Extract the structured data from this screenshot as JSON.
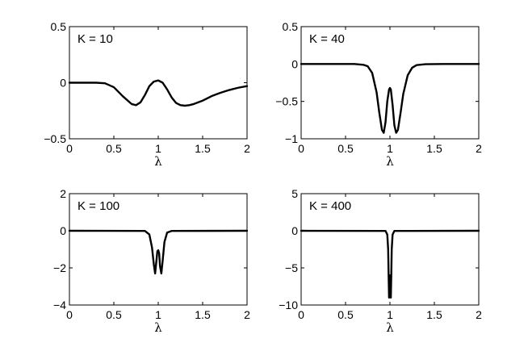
{
  "chart_data": [
    {
      "type": "line",
      "annotation": "K = 10",
      "xlabel": "λ",
      "xlim": [
        0,
        2
      ],
      "ylim": [
        -0.5,
        0.5
      ],
      "x_ticks": [
        0,
        0.5,
        1,
        1.5,
        2
      ],
      "x_tick_labels": [
        "0",
        "0.5",
        "1",
        "1.5",
        "2"
      ],
      "y_ticks": [
        -0.5,
        0,
        0.5
      ],
      "y_tick_labels": [
        "−0.5",
        "0",
        "0.5"
      ],
      "grid": false,
      "series": [
        {
          "x": [
            0,
            0.3,
            0.4,
            0.5,
            0.6,
            0.7,
            0.75,
            0.8,
            0.85,
            0.9,
            0.95,
            1.0,
            1.05,
            1.1,
            1.15,
            1.2,
            1.25,
            1.3,
            1.35,
            1.4,
            1.5,
            1.6,
            1.7,
            1.8,
            1.9,
            2.0
          ],
          "y": [
            0,
            0,
            -0.005,
            -0.04,
            -0.12,
            -0.19,
            -0.2,
            -0.175,
            -0.11,
            -0.03,
            0.01,
            0.02,
            0.0,
            -0.06,
            -0.13,
            -0.18,
            -0.2,
            -0.205,
            -0.2,
            -0.19,
            -0.16,
            -0.12,
            -0.09,
            -0.065,
            -0.045,
            -0.03
          ]
        }
      ]
    },
    {
      "type": "line",
      "annotation": "K = 40",
      "xlabel": "λ",
      "xlim": [
        0,
        2
      ],
      "ylim": [
        -1,
        0.5
      ],
      "x_ticks": [
        0,
        0.5,
        1,
        1.5,
        2
      ],
      "x_tick_labels": [
        "0",
        "0.5",
        "1",
        "1.5",
        "2"
      ],
      "y_ticks": [
        -1,
        -0.5,
        0,
        0.5
      ],
      "y_tick_labels": [
        "−1",
        "−0.5",
        "0",
        "0.5"
      ],
      "grid": false,
      "series": [
        {
          "x": [
            0,
            0.6,
            0.7,
            0.75,
            0.8,
            0.85,
            0.88,
            0.91,
            0.93,
            0.95,
            0.97,
            0.99,
            1.0,
            1.01,
            1.03,
            1.05,
            1.07,
            1.09,
            1.12,
            1.15,
            1.2,
            1.25,
            1.3,
            1.4,
            1.6,
            2.0
          ],
          "y": [
            0,
            0,
            -0.01,
            -0.03,
            -0.12,
            -0.38,
            -0.65,
            -0.88,
            -0.92,
            -0.78,
            -0.5,
            -0.34,
            -0.32,
            -0.34,
            -0.55,
            -0.82,
            -0.92,
            -0.88,
            -0.65,
            -0.4,
            -0.15,
            -0.05,
            -0.015,
            -0.003,
            0,
            0
          ]
        }
      ]
    },
    {
      "type": "line",
      "annotation": "K = 100",
      "xlabel": "λ",
      "xlim": [
        0,
        2
      ],
      "ylim": [
        -4,
        2
      ],
      "x_ticks": [
        0,
        0.5,
        1,
        1.5,
        2
      ],
      "x_tick_labels": [
        "0",
        "0.5",
        "1",
        "1.5",
        "2"
      ],
      "y_ticks": [
        -4,
        -2,
        0,
        2
      ],
      "y_tick_labels": [
        "−4",
        "−2",
        "0",
        "2"
      ],
      "grid": false,
      "series": [
        {
          "x": [
            0,
            0.85,
            0.9,
            0.93,
            0.95,
            0.965,
            0.98,
            0.99,
            1.0,
            1.01,
            1.02,
            1.035,
            1.05,
            1.07,
            1.1,
            1.15,
            2.0
          ],
          "y": [
            0,
            -0.01,
            -0.2,
            -0.9,
            -1.8,
            -2.3,
            -1.6,
            -1.1,
            -1.05,
            -1.2,
            -1.9,
            -2.3,
            -1.6,
            -0.6,
            -0.1,
            -0.01,
            0
          ]
        }
      ]
    },
    {
      "type": "line",
      "annotation": "K = 400",
      "xlabel": "λ",
      "xlim": [
        0,
        2
      ],
      "ylim": [
        -10,
        5
      ],
      "x_ticks": [
        0,
        0.5,
        1,
        1.5,
        2
      ],
      "x_tick_labels": [
        "0",
        "0.5",
        "1",
        "1.5",
        "2"
      ],
      "y_ticks": [
        -10,
        -5,
        0,
        5
      ],
      "y_tick_labels": [
        "−10",
        "−5",
        "0",
        "5"
      ],
      "grid": false,
      "series": [
        {
          "x": [
            0,
            0.95,
            0.97,
            0.98,
            0.985,
            0.99,
            0.995,
            1.0,
            1.005,
            1.01,
            1.015,
            1.02,
            1.03,
            1.05,
            2.0
          ],
          "y": [
            0,
            -0.02,
            -0.5,
            -2.5,
            -6.0,
            -9.0,
            -6.5,
            -6.0,
            -6.5,
            -9.0,
            -6.0,
            -2.5,
            -0.5,
            -0.02,
            0
          ]
        }
      ]
    }
  ]
}
